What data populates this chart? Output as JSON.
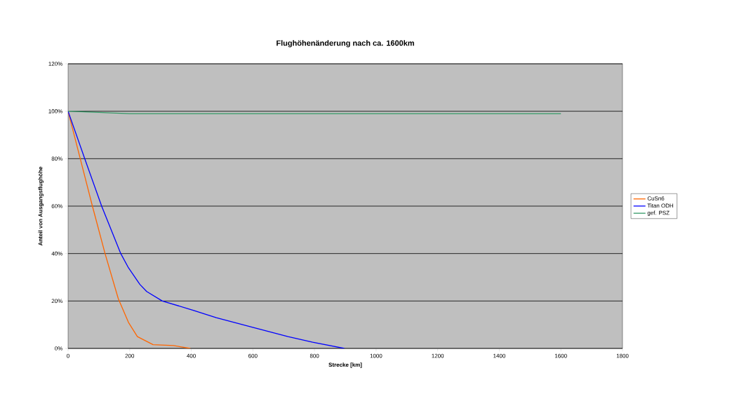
{
  "chart_data": {
    "type": "line",
    "title": "Flughöhenänderung nach ca. 1600km",
    "xlabel": "Strecke [km]",
    "ylabel": "Anteil von Ausgangsflughöhe",
    "xlim": [
      0,
      1800
    ],
    "xticks": [
      0,
      200,
      400,
      600,
      800,
      1000,
      1200,
      1400,
      1600,
      1800
    ],
    "ylim": [
      0,
      120
    ],
    "yticks": [
      {
        "value": 0,
        "label": "0%"
      },
      {
        "value": 20,
        "label": "20%"
      },
      {
        "value": 40,
        "label": "40%"
      },
      {
        "value": 60,
        "label": "60%"
      },
      {
        "value": 80,
        "label": "80%"
      },
      {
        "value": 100,
        "label": "100%"
      },
      {
        "value": 120,
        "label": "120%"
      }
    ],
    "grid": "y",
    "legend": "right",
    "series": [
      {
        "name": "CuSn6",
        "color": "#ff6600",
        "x": [
          0,
          79,
          120,
          163,
          196,
          225,
          276,
          342,
          397
        ],
        "values": [
          100,
          60,
          40,
          21,
          11,
          5,
          1.6,
          1.2,
          0
        ]
      },
      {
        "name": "Titan ODH",
        "color": "#0000ff",
        "x": [
          0,
          54,
          109,
          171,
          196,
          233,
          255,
          306,
          408,
          481,
          597,
          714,
          794,
          897
        ],
        "values": [
          100,
          80,
          60,
          40,
          34,
          27,
          24,
          20,
          16,
          13,
          9,
          5,
          2.6,
          0
        ]
      },
      {
        "name": "gef. PSZ",
        "color": "#339966",
        "x": [
          0,
          200,
          1600
        ],
        "values": [
          100,
          99,
          99
        ]
      }
    ]
  }
}
